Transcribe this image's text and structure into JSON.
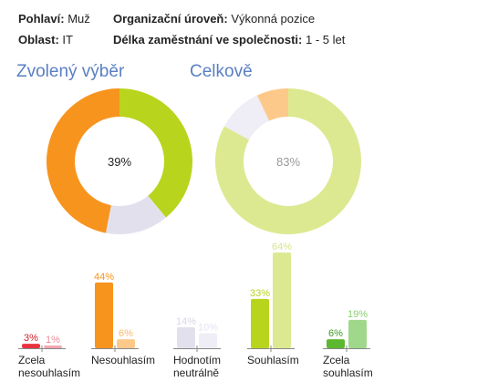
{
  "filters": [
    {
      "label": "Pohlaví:",
      "value": "Muž"
    },
    {
      "label": "Organizační úroveň:",
      "value": "Výkonná pozice"
    },
    {
      "label": "Oblast:",
      "value": "IT"
    },
    {
      "label": "Délka zaměstnání ve společnosti:",
      "value": "1 - 5 let"
    }
  ],
  "sections": {
    "selected_title": "Zvolený výběr",
    "overall_title": "Celkově"
  },
  "chart_data": {
    "type": "bar",
    "categories": [
      "Zcela nesouhlasím",
      "Nesouhlasím",
      "Hodnotím neutrálně",
      "Souhlasím",
      "Zcela souhlasím"
    ],
    "series": [
      {
        "values": [
          3,
          44,
          14,
          33,
          6
        ],
        "colors": [
          "#e8333f",
          "#f7941d",
          "#e3e0ee",
          "#b9d41c",
          "#5cb82e"
        ],
        "label_colors": [
          "#d0202c",
          "#f7941d",
          "#d9d6e6",
          "#b9d41c",
          "#3a9d20"
        ]
      },
      {
        "values": [
          1,
          6,
          10,
          64,
          19
        ],
        "colors": [
          "#f2a7b0",
          "#fdc98a",
          "#efedf5",
          "#dde991",
          "#9fd88a"
        ],
        "label_colors": [
          "#ec8a96",
          "#fbb86a",
          "#e6e3ef",
          "#d6e58a",
          "#88cf71"
        ]
      }
    ],
    "ylim": [
      0,
      70
    ],
    "donuts": [
      {
        "center_label": "39%",
        "label_color": "#222222",
        "slices": [
          {
            "value": 39,
            "color": "#b9d41c"
          },
          {
            "value": 14,
            "color": "#e3e0ee"
          },
          {
            "value": 47,
            "color": "#f7941d"
          }
        ]
      },
      {
        "center_label": "83%",
        "label_color": "#999999",
        "slices": [
          {
            "value": 83,
            "color": "#dde991"
          },
          {
            "value": 10,
            "color": "#efedf5"
          },
          {
            "value": 7,
            "color": "#fdc98a"
          }
        ]
      }
    ]
  }
}
